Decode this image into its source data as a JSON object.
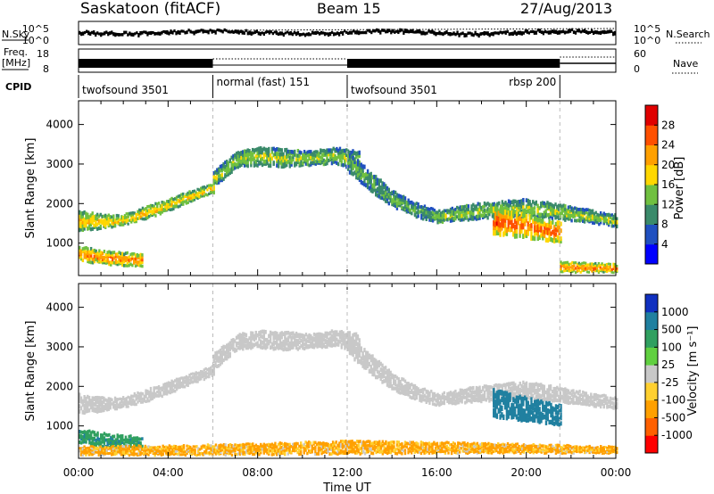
{
  "header": {
    "station": "Saskatoon (fitACF)",
    "beam": "Beam 15",
    "date": "27/Aug/2013"
  },
  "strip": {
    "left_labels": {
      "nsky": "N.Sky",
      "freq_line1": "Freq.",
      "freq_line2": "[MHz]",
      "cpid": "CPID"
    },
    "right_labels": {
      "nsearch": "N.Search",
      "nave": "Nave"
    },
    "noise_ticks": [
      "10^5",
      "10^0"
    ],
    "noise_ticks_right": [
      "10^5",
      "10^0"
    ],
    "freq_ticks": [
      "18",
      "8"
    ],
    "nave_ticks": [
      "60",
      "0"
    ],
    "cpid_segments": [
      {
        "start": 0.0,
        "end": 6.0,
        "label": "twofsound 3501"
      },
      {
        "start": 6.0,
        "end": 12.0,
        "label": "normal (fast) 151"
      },
      {
        "start": 12.0,
        "end": 21.5,
        "label": "twofsound 3501"
      },
      {
        "start": 21.5,
        "end": 24.0,
        "label": "rbsp 200"
      }
    ]
  },
  "axes": {
    "ylabel": "Slant Range [km]",
    "xlabel": "Time UT",
    "yticks": [
      1000,
      2000,
      3000,
      4000
    ],
    "xticks": [
      "00:00",
      "04:00",
      "08:00",
      "12:00",
      "16:00",
      "20:00",
      "00:00"
    ]
  },
  "colorbars": {
    "power": {
      "label": "Power [dB]",
      "ticks": [
        "28",
        "24",
        "20",
        "16",
        "12",
        "8",
        "4"
      ],
      "colors": [
        "#0000ff",
        "#2050c0",
        "#3a8a6a",
        "#70c040",
        "#ffd700",
        "#ffa000",
        "#ff5000",
        "#e00000"
      ]
    },
    "velocity": {
      "label": "Velocity [m s⁻¹]",
      "ticks": [
        "1000",
        "500",
        "100",
        "25",
        "-25",
        "-100",
        "-500",
        "-1000"
      ],
      "colors": [
        "#ff0000",
        "#ff6000",
        "#ffa000",
        "#ffd030",
        "#c8c8c8",
        "#60d040",
        "#30a060",
        "#2080a0",
        "#1030c0"
      ]
    }
  },
  "chart_data": [
    {
      "type": "heatmap",
      "title": "Power",
      "x_unit": "hours UT",
      "y_unit": "km",
      "xlim": [
        0,
        24
      ],
      "ylim": [
        180,
        4600
      ],
      "colorbar_label": "Power [dB]",
      "bands": [
        {
          "start": 0.0,
          "end": 6.0,
          "lo": [
            1300,
            1350,
            1450,
            1600,
            1800,
            2050,
            2250
          ],
          "hi": [
            1800,
            1700,
            1700,
            1900,
            2100,
            2300,
            2500
          ],
          "power": 18
        },
        {
          "start": 0.0,
          "end": 2.8,
          "lo": [
            550,
            450,
            420,
            400
          ],
          "hi": [
            900,
            800,
            750,
            700
          ],
          "power": 22
        },
        {
          "start": 6.0,
          "end": 12.5,
          "lo": [
            2400,
            2900,
            2950,
            2900,
            2950,
            3000,
            2800
          ],
          "hi": [
            2800,
            3300,
            3400,
            3350,
            3300,
            3400,
            3300
          ],
          "power": 14
        },
        {
          "start": 12.0,
          "end": 16.0,
          "lo": [
            2800,
            2300,
            1900,
            1650,
            1500
          ],
          "hi": [
            3300,
            2800,
            2300,
            2000,
            1800
          ],
          "power": 12
        },
        {
          "start": 16.0,
          "end": 24.0,
          "lo": [
            1500,
            1600,
            1650,
            1550,
            1400
          ],
          "hi": [
            1800,
            2000,
            2100,
            1900,
            1700
          ],
          "power": 14
        },
        {
          "start": 18.5,
          "end": 21.5,
          "lo": [
            1200,
            1100,
            1000
          ],
          "hi": [
            1900,
            1700,
            1500
          ],
          "power": 24
        },
        {
          "start": 21.5,
          "end": 24.0,
          "lo": [
            250,
            250
          ],
          "hi": [
            500,
            450
          ],
          "power": 22
        }
      ]
    },
    {
      "type": "heatmap",
      "title": "Velocity",
      "x_unit": "hours UT",
      "y_unit": "km",
      "xlim": [
        0,
        24
      ],
      "ylim": [
        180,
        4600
      ],
      "colorbar_label": "Velocity [m s⁻¹]",
      "bands": [
        {
          "start": 0.0,
          "end": 6.0,
          "lo": [
            1300,
            1350,
            1450,
            1600,
            1800,
            2050,
            2250
          ],
          "hi": [
            1800,
            1700,
            1700,
            1900,
            2100,
            2300,
            2500
          ],
          "velocity": 0
        },
        {
          "start": 0.0,
          "end": 2.8,
          "lo": [
            550,
            450,
            420,
            400
          ],
          "hi": [
            900,
            800,
            750,
            700
          ],
          "velocity": 400
        },
        {
          "start": 6.0,
          "end": 12.5,
          "lo": [
            2400,
            2900,
            2950,
            2900,
            2950,
            3000,
            2800
          ],
          "hi": [
            2800,
            3300,
            3400,
            3350,
            3300,
            3400,
            3300
          ],
          "velocity": 0
        },
        {
          "start": 12.0,
          "end": 16.0,
          "lo": [
            2800,
            2300,
            1900,
            1650,
            1500
          ],
          "hi": [
            3300,
            2800,
            2300,
            2000,
            1800
          ],
          "velocity": 0
        },
        {
          "start": 16.0,
          "end": 24.0,
          "lo": [
            1500,
            1600,
            1650,
            1550,
            1400
          ],
          "hi": [
            1800,
            2000,
            2100,
            1900,
            1700
          ],
          "velocity": 0
        },
        {
          "start": 18.5,
          "end": 21.5,
          "lo": [
            1200,
            1100,
            1000
          ],
          "hi": [
            1900,
            1700,
            1500
          ],
          "velocity": 800
        },
        {
          "start": 0.0,
          "end": 24.0,
          "lo": [
            250,
            250,
            280,
            300,
            300
          ],
          "hi": [
            450,
            500,
            600,
            550,
            450
          ],
          "velocity": -150
        }
      ]
    }
  ]
}
